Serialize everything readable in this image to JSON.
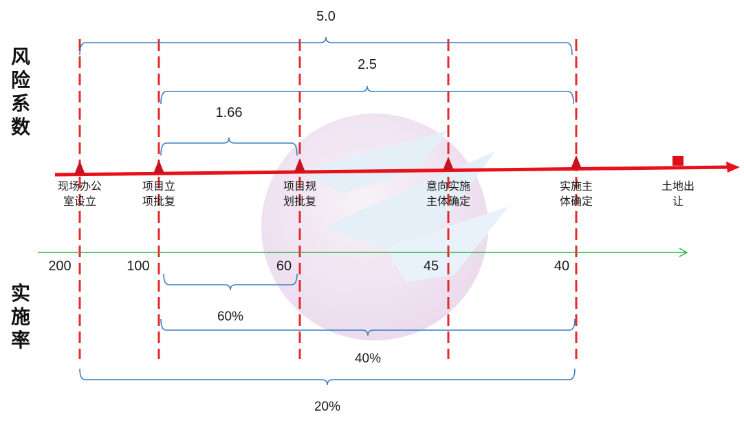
{
  "side_labels": {
    "top": [
      "风",
      "险",
      "系",
      "数"
    ],
    "bottom": [
      "实",
      "施",
      "率"
    ]
  },
  "milestones": [
    {
      "lines": [
        "现场办公",
        "室设立"
      ],
      "rate": "200",
      "marker": "triangle"
    },
    {
      "lines": [
        "项目立",
        "项批复"
      ],
      "rate": "100",
      "marker": "triangle"
    },
    {
      "lines": [
        "项目规",
        "划批复"
      ],
      "rate": "60",
      "marker": "triangle"
    },
    {
      "lines": [
        "意向实施",
        "主体确定"
      ],
      "rate": "45",
      "marker": "triangle"
    },
    {
      "lines": [
        "实施主",
        "体确定"
      ],
      "rate": "40",
      "marker": "triangle"
    },
    {
      "lines": [
        "土地出",
        "让"
      ],
      "rate": "",
      "marker": "square"
    }
  ],
  "risk_braces": [
    {
      "label": "5.0"
    },
    {
      "label": "2.5"
    },
    {
      "label": "1.66"
    }
  ],
  "rate_braces": [
    {
      "label": "60%"
    },
    {
      "label": "40%"
    },
    {
      "label": "20%"
    }
  ],
  "colors": {
    "main_axis": "#e8101a",
    "dash_line": "#e32b2b",
    "rate_axis": "#2bb24c",
    "brace": "#3a7fc0",
    "text": "#1a1a1a"
  },
  "watermark": "logo"
}
